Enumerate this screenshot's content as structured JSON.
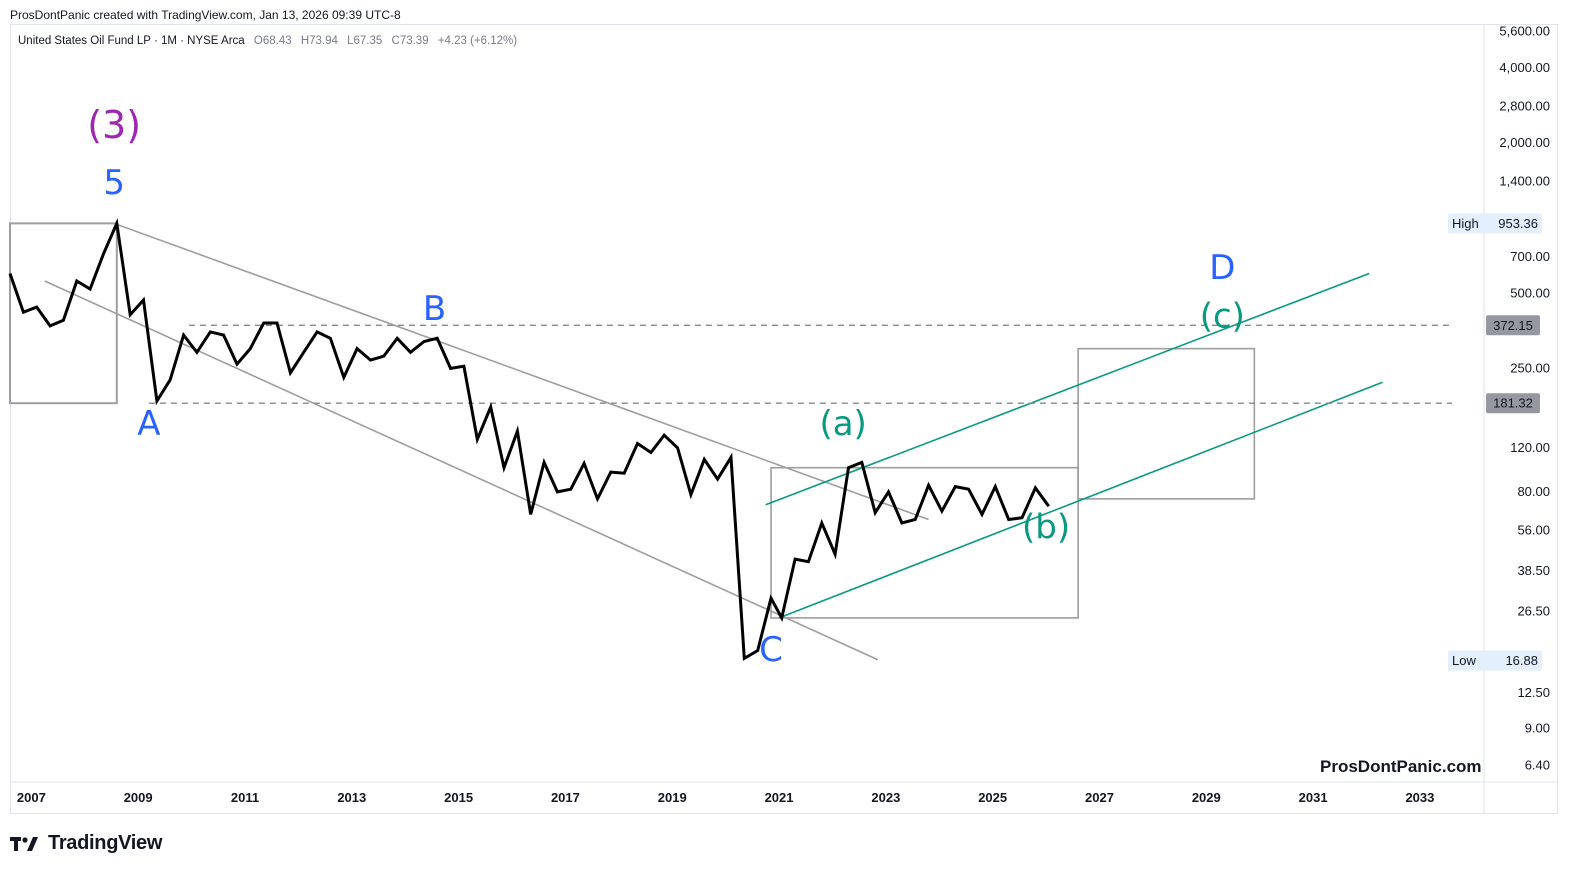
{
  "header": {
    "credit": "ProsDontPanic created with TradingView.com, Jan 13, 2026 09:39 UTC-8"
  },
  "legend": {
    "symbol": "United States Oil Fund LP · 1M · NYSE Arca",
    "open": "O68.43",
    "high": "H73.94",
    "low": "L67.35",
    "close": "C73.39",
    "change": "+4.23 (+6.12%)"
  },
  "watermark": "ProsDontPanic.com",
  "footer": {
    "brand": "TradingView",
    "icon": "tradingview-logo-icon"
  },
  "colors": {
    "price": "#000000",
    "wave_purple": "#9c27b0",
    "wave_blue": "#2962ff",
    "wave_teal": "#089981",
    "channel_gray": "#9e9e9e",
    "teal_channel": "#089981",
    "box_gray": "#9e9e9e",
    "dashed": "#888888",
    "label_bg_gray": "#9598a1",
    "label_bg_light": "#e3effd"
  },
  "chart_data": {
    "type": "line",
    "scale": "log",
    "title": "",
    "xlabel": "",
    "ylabel": "",
    "ylim": [
      5.5,
      6000
    ],
    "xlim": [
      2006.6,
      2034.2
    ],
    "grid": false,
    "y_ticks": [
      "5,600.00",
      "4,000.00",
      "2,800.00",
      "2,000.00",
      "1,400.00",
      "700.00",
      "500.00",
      "250.00",
      "120.00",
      "80.00",
      "56.00",
      "38.50",
      "26.50",
      "12.50",
      "9.00",
      "6.40"
    ],
    "y_tick_values": [
      5600,
      4000,
      2800,
      2000,
      1400,
      700,
      500,
      250,
      120,
      80,
      56,
      38.5,
      26.5,
      12.5,
      9,
      6.4
    ],
    "x_ticks": [
      "2007",
      "2009",
      "2011",
      "2013",
      "2015",
      "2017",
      "2019",
      "2021",
      "2023",
      "2025",
      "2027",
      "2029",
      "2031",
      "2033"
    ],
    "x_tick_values": [
      2007,
      2009,
      2011,
      2013,
      2015,
      2017,
      2019,
      2021,
      2023,
      2025,
      2027,
      2029,
      2031,
      2033
    ],
    "price_labels": [
      {
        "name": "High",
        "value": "953.36",
        "y": 953.36,
        "style": "light"
      },
      {
        "name": "",
        "value": "372.15",
        "y": 372.15,
        "style": "gray"
      },
      {
        "name": "",
        "value": "181.32",
        "y": 181.32,
        "style": "gray"
      },
      {
        "name": "Low",
        "value": "16.88",
        "y": 16.88,
        "style": "light"
      }
    ],
    "series": [
      {
        "values_x": [
          2006.6,
          2006.85,
          2007.1,
          2007.35,
          2007.6,
          2007.85,
          2008.1,
          2008.35,
          2008.6,
          2008.85,
          2009.1,
          2009.35,
          2009.6,
          2009.85,
          2010.1,
          2010.35,
          2010.6,
          2010.85,
          2011.1,
          2011.35,
          2011.6,
          2011.85,
          2012.1,
          2012.35,
          2012.6,
          2012.85,
          2013.1,
          2013.35,
          2013.6,
          2013.85,
          2014.1,
          2014.35,
          2014.6,
          2014.85,
          2015.1,
          2015.35,
          2015.6,
          2015.85,
          2016.1,
          2016.35,
          2016.6,
          2016.85,
          2017.1,
          2017.35,
          2017.6,
          2017.85,
          2018.1,
          2018.35,
          2018.6,
          2018.85,
          2019.1,
          2019.35,
          2019.6,
          2019.85,
          2020.1,
          2020.35,
          2020.6,
          2020.85,
          2021.05,
          2021.3,
          2021.55,
          2021.8,
          2022.05,
          2022.3,
          2022.55,
          2022.8,
          2023.05,
          2023.3,
          2023.55,
          2023.8,
          2024.05,
          2024.3,
          2024.55,
          2024.8,
          2025.05,
          2025.3,
          2025.55,
          2025.8,
          2026.05
        ],
        "values": [
          600,
          420,
          440,
          370,
          390,
          560,
          520,
          720,
          953,
          410,
          470,
          185,
          225,
          340,
          290,
          350,
          340,
          260,
          300,
          380,
          380,
          240,
          290,
          350,
          330,
          230,
          300,
          270,
          280,
          330,
          290,
          320,
          330,
          250,
          255,
          130,
          175,
          100,
          140,
          65,
          105,
          80,
          82,
          104,
          75,
          96,
          95,
          125,
          115,
          135,
          120,
          78,
          108,
          90,
          110,
          17.2,
          18.5,
          30,
          25,
          43,
          42,
          60,
          45,
          100,
          105,
          66,
          80,
          60,
          62,
          85,
          67,
          84,
          82,
          65,
          84,
          62,
          63,
          83,
          70
        ]
      }
    ],
    "annotations": [
      {
        "text": "(3)",
        "x": 2008.55,
        "y": 2100,
        "color": "purple"
      },
      {
        "text": "5",
        "x": 2008.55,
        "y": 1250,
        "color": "blue"
      },
      {
        "text": "A",
        "x": 2009.2,
        "y": 135,
        "color": "blue"
      },
      {
        "text": "B",
        "x": 2014.55,
        "y": 390,
        "color": "blue"
      },
      {
        "text": "C",
        "x": 2020.85,
        "y": 16.8,
        "color": "blue"
      },
      {
        "text": "(a)",
        "x": 2022.2,
        "y": 135,
        "color": "teal"
      },
      {
        "text": "(b)",
        "x": 2026.0,
        "y": 52,
        "color": "teal"
      },
      {
        "text": "(c)",
        "x": 2029.3,
        "y": 365,
        "color": "teal"
      },
      {
        "text": "D",
        "x": 2029.3,
        "y": 570,
        "color": "blue"
      }
    ],
    "lines": [
      {
        "kind": "channel_gray",
        "x1": 2008.55,
        "y1": 953,
        "x2": 2023.8,
        "y2": 62
      },
      {
        "kind": "channel_gray",
        "x1": 2007.25,
        "y1": 560,
        "x2": 2022.85,
        "y2": 17
      },
      {
        "kind": "teal",
        "x1": 2021.0,
        "y1": 25,
        "x2": 2032.3,
        "y2": 220
      },
      {
        "kind": "teal",
        "x1": 2020.75,
        "y1": 71,
        "x2": 2032.05,
        "y2": 600
      },
      {
        "kind": "dashed",
        "x1": 2009.95,
        "y1": 372.15,
        "x2": 2033.6,
        "y2": 372.15
      },
      {
        "kind": "dashed",
        "x1": 2009.2,
        "y1": 181.32,
        "x2": 2033.6,
        "y2": 181.32
      }
    ],
    "boxes": [
      {
        "x1": 2006.6,
        "y1": 953,
        "x2": 2008.6,
        "y2": 181.32
      },
      {
        "x1": 2020.85,
        "y1": 100,
        "x2": 2026.6,
        "y2": 25
      },
      {
        "x1": 2026.6,
        "y1": 300,
        "x2": 2029.9,
        "y2": 75
      }
    ]
  }
}
